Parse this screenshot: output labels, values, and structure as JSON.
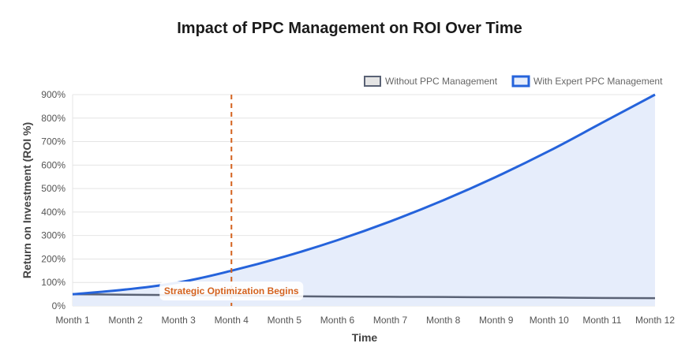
{
  "chart_data": {
    "type": "line",
    "title": "Impact of PPC Management on ROI Over Time",
    "xlabel": "Time",
    "ylabel": "Return on Investment (ROI %)",
    "categories": [
      "Month 1",
      "Month 2",
      "Month 3",
      "Month 4",
      "Month 5",
      "Month 6",
      "Month 7",
      "Month 8",
      "Month 9",
      "Month 10",
      "Month 11",
      "Month 12"
    ],
    "ylim": [
      0,
      900
    ],
    "yticks": [
      0,
      100,
      200,
      300,
      400,
      500,
      600,
      700,
      800,
      900
    ],
    "ytick_labels": [
      "0%",
      "100%",
      "200%",
      "300%",
      "400%",
      "500%",
      "600%",
      "700%",
      "800%",
      "900%"
    ],
    "grid": true,
    "legend_position": "top-right",
    "series": [
      {
        "name": "Without PPC Management",
        "values": [
          50,
          48,
          46,
          44,
          42,
          40,
          39,
          38,
          37,
          36,
          34,
          33
        ],
        "color": "#5a6275",
        "fill": "#e5e5e5",
        "filled": false
      },
      {
        "name": "With Expert PPC Management",
        "values": [
          50,
          70,
          100,
          150,
          210,
          280,
          360,
          450,
          550,
          660,
          780,
          900
        ],
        "color": "#2563db",
        "fill": "#e6edfb",
        "filled": true
      }
    ],
    "annotation": {
      "label": "Strategic Optimization Begins",
      "x": "Month 4",
      "color": "#d4621e"
    }
  }
}
